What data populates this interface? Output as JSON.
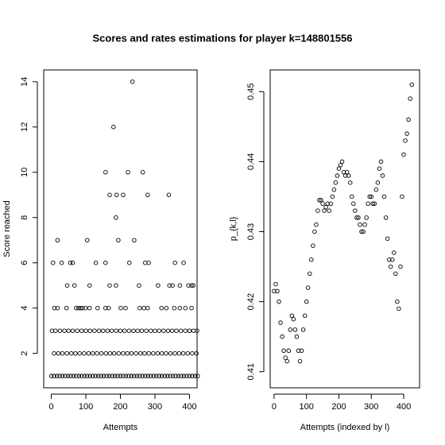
{
  "title": "Scores and rates estimations for player k=148801556",
  "chart_data": [
    {
      "type": "scatter",
      "xlabel": "Attempts",
      "ylabel": "Score reached",
      "color": "#000000",
      "xlim": [
        -22,
        422
      ],
      "ylim": [
        0.48,
        14.52
      ],
      "xticks": [
        0,
        100,
        200,
        300,
        400
      ],
      "yticks": [
        2,
        4,
        6,
        8,
        10,
        12,
        14
      ],
      "x": [
        235,
        180,
        157,
        222,
        265,
        169,
        189,
        208,
        279,
        340,
        187,
        18,
        104,
        194,
        240,
        5,
        30,
        55,
        62,
        129,
        157,
        226,
        272,
        282,
        358,
        383,
        46,
        67,
        111,
        169,
        187,
        254,
        309,
        342,
        351,
        372,
        397,
        406,
        411,
        9,
        18,
        44,
        72,
        79,
        85,
        90,
        99,
        111,
        134,
        157,
        166,
        201,
        215,
        256,
        268,
        279,
        319,
        333,
        356,
        372,
        388,
        406,
        2,
        12,
        25,
        38,
        50,
        62,
        75,
        88,
        100,
        112,
        125,
        138,
        150,
        163,
        175,
        188,
        200,
        212,
        225,
        238,
        250,
        262,
        275,
        288,
        300,
        312,
        325,
        338,
        350,
        362,
        375,
        388,
        400,
        412,
        422,
        8,
        20,
        32,
        45,
        58,
        70,
        82,
        95,
        108,
        120,
        132,
        145,
        158,
        170,
        182,
        195,
        208,
        220,
        232,
        245,
        258,
        270,
        282,
        295,
        308,
        320,
        332,
        345,
        358,
        370,
        382,
        395,
        408,
        420,
        0,
        8,
        16,
        24,
        32,
        40,
        48,
        56,
        64,
        72,
        80,
        88,
        96,
        104,
        112,
        120,
        128,
        136,
        144,
        152,
        160,
        168,
        176,
        184,
        192,
        200,
        208,
        216,
        224,
        232,
        240,
        248,
        256,
        264,
        272,
        280,
        288,
        296,
        304,
        312,
        320,
        328,
        336,
        344,
        352,
        360,
        368,
        376,
        384,
        392,
        400,
        408,
        416,
        424
      ],
      "values": [
        14,
        12,
        10,
        10,
        10,
        9,
        9,
        9,
        9,
        9,
        8,
        7,
        7,
        7,
        7,
        6,
        6,
        6,
        6,
        6,
        6,
        6,
        6,
        6,
        6,
        6,
        5,
        5,
        5,
        5,
        5,
        5,
        5,
        5,
        5,
        5,
        5,
        5,
        5,
        4,
        4,
        4,
        4,
        4,
        4,
        4,
        4,
        4,
        4,
        4,
        4,
        4,
        4,
        4,
        4,
        4,
        4,
        4,
        4,
        4,
        4,
        4,
        3,
        3,
        3,
        3,
        3,
        3,
        3,
        3,
        3,
        3,
        3,
        3,
        3,
        3,
        3,
        3,
        3,
        3,
        3,
        3,
        3,
        3,
        3,
        3,
        3,
        3,
        3,
        3,
        3,
        3,
        3,
        3,
        3,
        3,
        3,
        2,
        2,
        2,
        2,
        2,
        2,
        2,
        2,
        2,
        2,
        2,
        2,
        2,
        2,
        2,
        2,
        2,
        2,
        2,
        2,
        2,
        2,
        2,
        2,
        2,
        2,
        2,
        2,
        2,
        2,
        2,
        2,
        2,
        2,
        1,
        1,
        1,
        1,
        1,
        1,
        1,
        1,
        1,
        1,
        1,
        1,
        1,
        1,
        1,
        1,
        1,
        1,
        1,
        1,
        1,
        1,
        1,
        1,
        1,
        1,
        1,
        1,
        1,
        1,
        1,
        1,
        1,
        1,
        1,
        1,
        1,
        1,
        1,
        1,
        1,
        1,
        1,
        1,
        1,
        1,
        1,
        1,
        1,
        1,
        1,
        1,
        1,
        1
      ]
    },
    {
      "type": "scatter",
      "xlabel": "Attempts (indexed by l)",
      "ylabel": "p_{k,l}",
      "color": "#000000",
      "xlim": [
        -12,
        449
      ],
      "ylim": [
        0.4077,
        0.4531
      ],
      "xticks": [
        0,
        100,
        200,
        300,
        400
      ],
      "yticks": [
        0.41,
        0.42,
        0.43,
        0.44,
        0.45
      ],
      "x": [
        0,
        5,
        10,
        15,
        20,
        25,
        30,
        35,
        40,
        45,
        50,
        55,
        60,
        65,
        70,
        75,
        80,
        85,
        90,
        95,
        100,
        105,
        110,
        115,
        120,
        125,
        130,
        135,
        140,
        145,
        150,
        155,
        160,
        165,
        170,
        175,
        180,
        185,
        190,
        195,
        200,
        205,
        210,
        215,
        220,
        225,
        230,
        235,
        240,
        245,
        250,
        255,
        260,
        265,
        270,
        275,
        280,
        285,
        290,
        295,
        300,
        305,
        310,
        315,
        320,
        325,
        330,
        335,
        340,
        345,
        350,
        355,
        360,
        365,
        370,
        375,
        380,
        385,
        390,
        395,
        400,
        405,
        410,
        415,
        420,
        425
      ],
      "values": [
        0.4215,
        0.4225,
        0.4215,
        0.42,
        0.417,
        0.415,
        0.413,
        0.412,
        0.4115,
        0.413,
        0.416,
        0.418,
        0.4175,
        0.416,
        0.415,
        0.413,
        0.4115,
        0.413,
        0.416,
        0.418,
        0.42,
        0.422,
        0.424,
        0.426,
        0.428,
        0.43,
        0.431,
        0.433,
        0.4345,
        0.4345,
        0.434,
        0.433,
        0.4335,
        0.434,
        0.433,
        0.434,
        0.435,
        0.436,
        0.437,
        0.438,
        0.439,
        0.4395,
        0.44,
        0.4385,
        0.438,
        0.4385,
        0.438,
        0.437,
        0.435,
        0.434,
        0.433,
        0.432,
        0.432,
        0.431,
        0.43,
        0.43,
        0.431,
        0.432,
        0.434,
        0.435,
        0.435,
        0.434,
        0.434,
        0.436,
        0.437,
        0.439,
        0.44,
        0.438,
        0.435,
        0.432,
        0.429,
        0.426,
        0.425,
        0.426,
        0.427,
        0.424,
        0.42,
        0.419,
        0.425,
        0.435,
        0.441,
        0.443,
        0.444,
        0.446,
        0.449,
        0.451
      ]
    }
  ]
}
